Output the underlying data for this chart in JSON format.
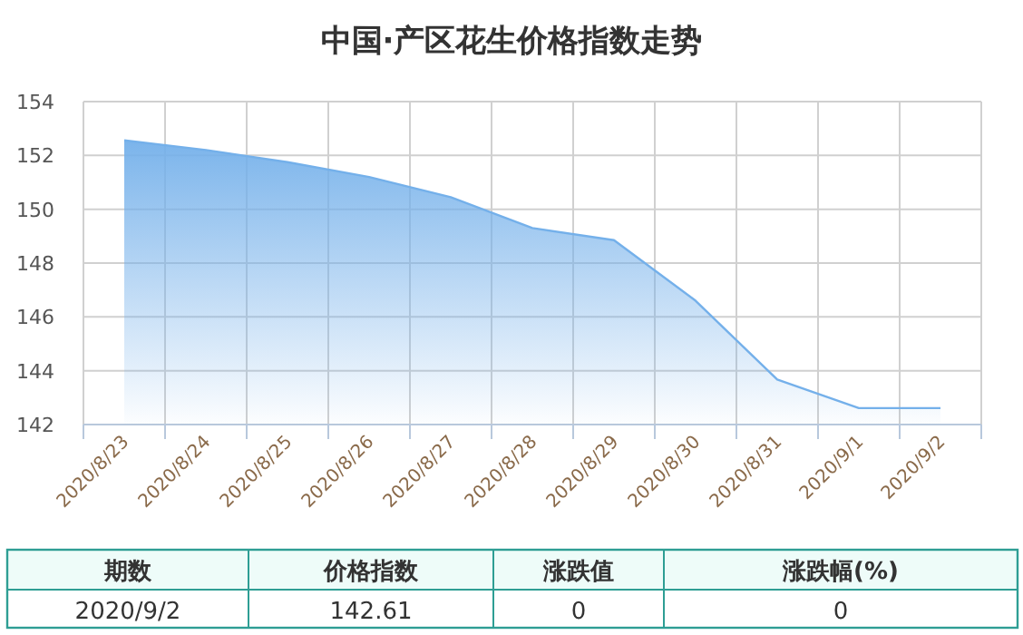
{
  "chart_data": {
    "type": "area",
    "title": "中国·产区花生价格指数走势",
    "categories": [
      "2020/8/23",
      "2020/8/24",
      "2020/8/25",
      "2020/8/26",
      "2020/8/27",
      "2020/8/28",
      "2020/8/29",
      "2020/8/30",
      "2020/8/31",
      "2020/9/1",
      "2020/9/2"
    ],
    "series": [
      {
        "color": "#74b0ea",
        "values": [
          152.56,
          152.2,
          151.75,
          151.2,
          150.45,
          149.3,
          148.85,
          146.6,
          143.67,
          142.61,
          142.61
        ]
      }
    ],
    "ylim": [
      142,
      154
    ],
    "yticks": [
      142,
      144,
      146,
      148,
      150,
      152,
      154
    ],
    "grid": true,
    "annotations": [
      "期数",
      "价格指数",
      "涨跌值",
      "涨跌幅(%)",
      "2020/9/2",
      "142.61",
      "0",
      "0"
    ]
  }
}
